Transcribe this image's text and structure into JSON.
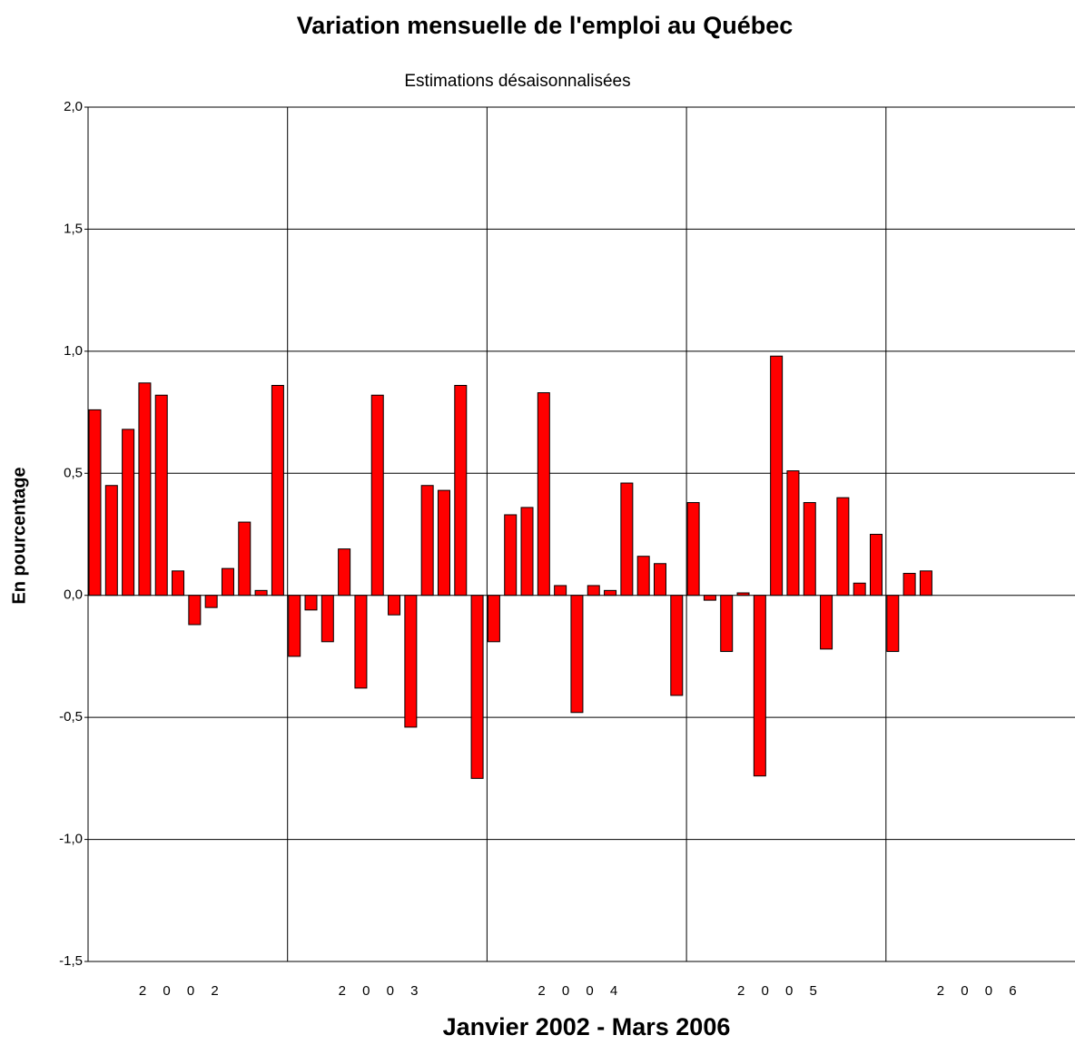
{
  "chart_data": {
    "type": "bar",
    "title": "Variation mensuelle de l'emploi au Québec",
    "subtitle": "Estimations désaisonnalisées",
    "x_label": "Janvier 2002 - Mars 2006",
    "y_label": "En pourcentage",
    "x_groups": [
      "2 0 0 2",
      "2 0 0 3",
      "2 0 0 4",
      "2 0 0 5",
      "2 0 0 6"
    ],
    "categories": [
      null,
      null,
      null,
      null,
      null,
      null,
      null,
      null,
      null,
      null,
      null,
      null,
      null,
      null,
      null,
      null,
      null,
      null,
      null,
      null,
      null,
      null,
      null,
      null,
      null,
      null,
      null,
      null,
      null,
      null,
      null,
      null,
      null,
      null,
      null,
      null,
      null,
      null,
      null,
      null,
      null,
      null,
      null,
      null,
      null,
      null,
      null,
      null,
      null,
      null,
      null
    ],
    "values": [
      0.76,
      0.45,
      0.68,
      0.87,
      0.82,
      0.1,
      -0.12,
      -0.05,
      0.11,
      0.3,
      0.02,
      0.86,
      -0.25,
      -0.06,
      -0.19,
      0.19,
      -0.38,
      0.82,
      -0.08,
      -0.54,
      0.45,
      0.43,
      0.86,
      -0.75,
      -0.19,
      0.33,
      0.36,
      0.83,
      0.04,
      -0.48,
      0.04,
      0.02,
      0.46,
      0.16,
      0.13,
      -0.41,
      0.38,
      -0.02,
      -0.23,
      0.01,
      -0.74,
      0.98,
      0.51,
      0.38,
      -0.22,
      0.4,
      0.05,
      0.25,
      -0.23,
      0.09,
      0.1
    ],
    "color": "#ff0000",
    "ylim": [
      -1.5,
      2.0
    ],
    "yticks": [
      {
        "value": -1.5,
        "label": "-1,5"
      },
      {
        "value": -1.0,
        "label": "-1,0"
      },
      {
        "value": -0.5,
        "label": "-0,5"
      },
      {
        "value": 0,
        "label": "0,0"
      },
      {
        "value": 0.5,
        "label": "0,5"
      },
      {
        "value": 1.0,
        "label": "1,0"
      },
      {
        "value": 1.5,
        "label": "1,5"
      },
      {
        "value": 2.0,
        "label": "2,0"
      }
    ],
    "grid": true
  }
}
